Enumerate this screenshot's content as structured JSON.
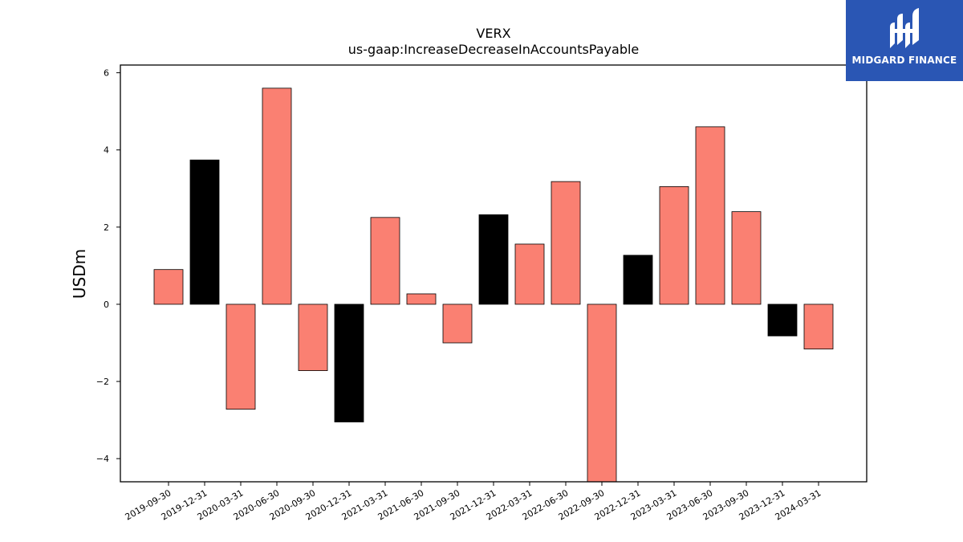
{
  "chart_data": {
    "type": "bar",
    "title": "VERX",
    "subtitle": "us-gaap:IncreaseDecreaseInAccountsPayable",
    "xlabel": "",
    "ylabel": "USDm",
    "ylim": [
      -4.6,
      6.2
    ],
    "yticks": [
      -4,
      -2,
      0,
      2,
      4,
      6
    ],
    "ytick_labels": [
      "−4",
      "−2",
      "0",
      "2",
      "4",
      "6"
    ],
    "grid": false,
    "categories": [
      "2019-09-30",
      "2019-12-31",
      "2020-03-31",
      "2020-06-30",
      "2020-09-30",
      "2020-12-31",
      "2021-03-31",
      "2021-06-30",
      "2021-09-30",
      "2021-12-31",
      "2022-03-31",
      "2022-06-30",
      "2022-09-30",
      "2022-12-31",
      "2023-03-31",
      "2023-06-30",
      "2023-09-30",
      "2023-12-31",
      "2024-03-31"
    ],
    "values": [
      0.9,
      3.74,
      -2.72,
      5.6,
      -1.72,
      -3.05,
      2.25,
      0.27,
      -1.0,
      2.32,
      1.56,
      3.18,
      -4.6,
      1.27,
      3.05,
      4.6,
      2.4,
      -0.82,
      -1.16
    ],
    "colors": {
      "default": "#fa8072",
      "q4": "#000000",
      "edge": "#000000"
    },
    "q4_categories": [
      "2019-12-31",
      "2020-12-31",
      "2021-12-31",
      "2022-12-31",
      "2023-12-31"
    ]
  },
  "logo": {
    "text": "MIDGARD FINANCE",
    "background": "#2a56b4"
  }
}
